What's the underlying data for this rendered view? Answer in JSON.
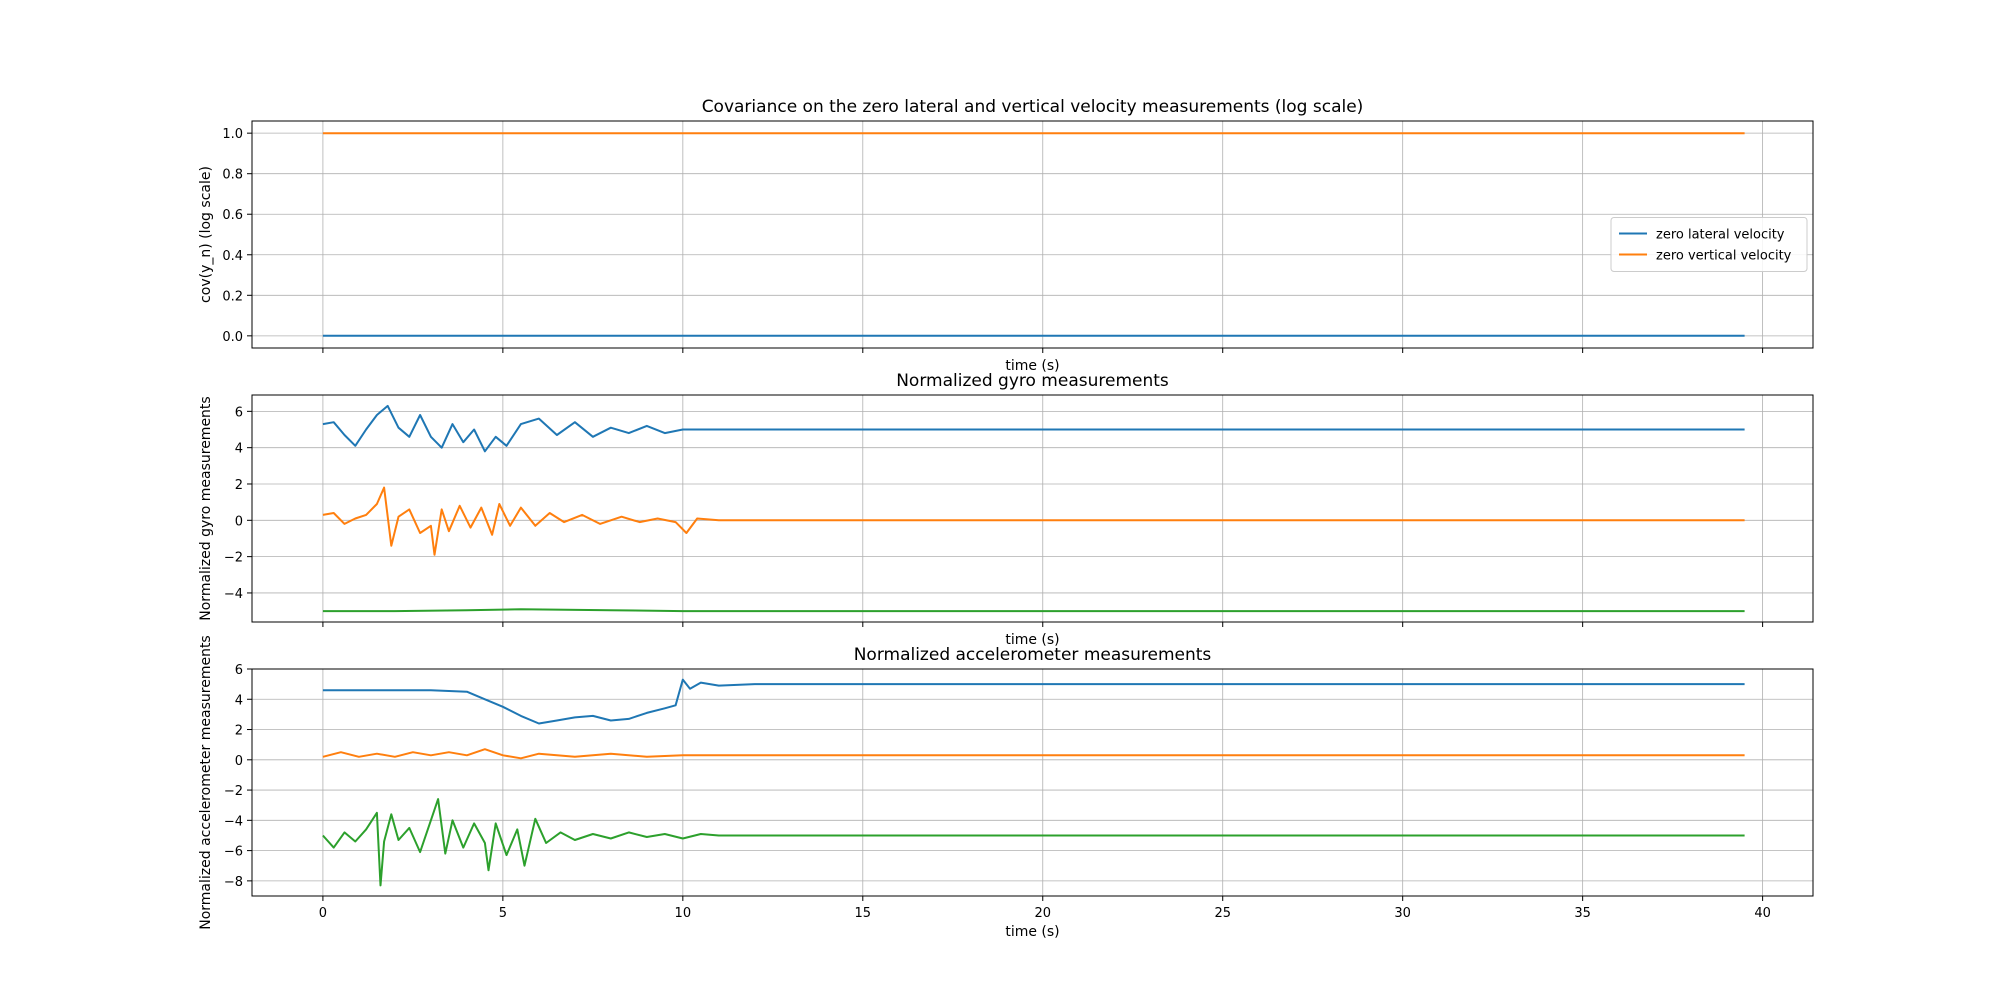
{
  "chart_data": [
    {
      "type": "line",
      "title": "Covariance on the zero lateral and vertical velocity measurements (log scale)",
      "xlabel": "time (s)",
      "ylabel": "cov(y_n) (log scale)",
      "xlim": [
        -1.97,
        41.4
      ],
      "ylim": [
        -0.06,
        1.06
      ],
      "xticks": [
        "0",
        "5",
        "10",
        "15",
        "20",
        "25",
        "30",
        "35",
        "40"
      ],
      "yticks": [
        "0.0",
        "0.2",
        "0.4",
        "0.6",
        "0.8",
        "1.0"
      ],
      "grid": true,
      "legend": "center-right",
      "series": [
        {
          "name": "zero lateral velocity",
          "color": "#1f77b4",
          "x": [
            0,
            5,
            10,
            39.5
          ],
          "y": [
            0.0,
            0.0,
            0.0,
            0.0
          ]
        },
        {
          "name": "zero vertical velocity",
          "color": "#ff7f0e",
          "x": [
            0,
            5,
            10,
            39.5
          ],
          "y": [
            1.0,
            1.0,
            1.0,
            1.0
          ]
        }
      ]
    },
    {
      "type": "line",
      "title": "Normalized gyro measurements",
      "xlabel": "time (s)",
      "ylabel": "Normalized gyro measurements",
      "xlim": [
        -1.97,
        41.4
      ],
      "ylim": [
        -5.6,
        6.9
      ],
      "xticks": [
        "0",
        "5",
        "10",
        "15",
        "20",
        "25",
        "30",
        "35",
        "40"
      ],
      "yticks": [
        "−4",
        "−2",
        "0",
        "2",
        "4",
        "6"
      ],
      "grid": true,
      "series": [
        {
          "color": "#1f77b4",
          "x": [
            0,
            0.3,
            0.6,
            0.9,
            1.2,
            1.5,
            1.8,
            2.1,
            2.4,
            2.7,
            3.0,
            3.3,
            3.6,
            3.9,
            4.2,
            4.5,
            4.8,
            5.1,
            5.5,
            6.0,
            6.5,
            7.0,
            7.5,
            8.0,
            8.5,
            9.0,
            9.5,
            10.0,
            11.0,
            12.0,
            39.5
          ],
          "y": [
            5.3,
            5.4,
            4.7,
            4.1,
            5.0,
            5.8,
            6.3,
            5.1,
            4.6,
            5.8,
            4.6,
            4.0,
            5.3,
            4.3,
            5.0,
            3.8,
            4.6,
            4.1,
            5.3,
            5.6,
            4.7,
            5.4,
            4.6,
            5.1,
            4.8,
            5.2,
            4.8,
            5.0,
            5.0,
            5.0,
            5.0
          ]
        },
        {
          "color": "#ff7f0e",
          "x": [
            0,
            0.3,
            0.6,
            0.9,
            1.2,
            1.5,
            1.7,
            1.9,
            2.1,
            2.4,
            2.7,
            3.0,
            3.1,
            3.3,
            3.5,
            3.8,
            4.1,
            4.4,
            4.7,
            4.9,
            5.2,
            5.5,
            5.9,
            6.3,
            6.7,
            7.2,
            7.7,
            8.3,
            8.8,
            9.3,
            9.8,
            10.1,
            10.4,
            11.0,
            39.5
          ],
          "y": [
            0.3,
            0.4,
            -0.2,
            0.1,
            0.3,
            0.9,
            1.8,
            -1.4,
            0.2,
            0.6,
            -0.7,
            -0.3,
            -1.9,
            0.6,
            -0.6,
            0.8,
            -0.4,
            0.7,
            -0.8,
            0.9,
            -0.3,
            0.7,
            -0.3,
            0.4,
            -0.1,
            0.3,
            -0.2,
            0.2,
            -0.1,
            0.1,
            -0.1,
            -0.7,
            0.1,
            0.0,
            0.0
          ]
        },
        {
          "color": "#2ca02c",
          "x": [
            0,
            2.0,
            4.0,
            5.5,
            8.0,
            10.0,
            39.5
          ],
          "y": [
            -5.0,
            -5.0,
            -4.95,
            -4.9,
            -4.95,
            -5.0,
            -5.0
          ]
        }
      ]
    },
    {
      "type": "line",
      "title": "Normalized accelerometer measurements",
      "xlabel": "time (s)",
      "ylabel": "Normalized accelerometer measurements",
      "xlim": [
        -1.97,
        41.4
      ],
      "ylim": [
        -9.0,
        6.0
      ],
      "xticks": [
        "0",
        "5",
        "10",
        "15",
        "20",
        "25",
        "30",
        "35",
        "40"
      ],
      "yticks": [
        "−8",
        "−6",
        "−4",
        "−2",
        "0",
        "2",
        "4",
        "6"
      ],
      "grid": true,
      "series": [
        {
          "color": "#1f77b4",
          "x": [
            0,
            1.0,
            2.0,
            3.0,
            4.0,
            4.5,
            5.0,
            5.5,
            6.0,
            6.5,
            7.0,
            7.5,
            8.0,
            8.5,
            9.0,
            9.5,
            9.8,
            10.0,
            10.2,
            10.5,
            11.0,
            12.0,
            39.5
          ],
          "y": [
            4.6,
            4.6,
            4.6,
            4.6,
            4.5,
            4.0,
            3.5,
            2.9,
            2.4,
            2.6,
            2.8,
            2.9,
            2.6,
            2.7,
            3.1,
            3.4,
            3.6,
            5.3,
            4.7,
            5.1,
            4.9,
            5.0,
            5.0
          ]
        },
        {
          "color": "#ff7f0e",
          "x": [
            0,
            0.5,
            1.0,
            1.5,
            2.0,
            2.5,
            3.0,
            3.5,
            4.0,
            4.5,
            5.0,
            5.5,
            6.0,
            7.0,
            8.0,
            9.0,
            10.0,
            11.0,
            39.5
          ],
          "y": [
            0.2,
            0.5,
            0.2,
            0.4,
            0.2,
            0.5,
            0.3,
            0.5,
            0.3,
            0.7,
            0.3,
            0.1,
            0.4,
            0.2,
            0.4,
            0.2,
            0.3,
            0.3,
            0.3
          ]
        },
        {
          "color": "#2ca02c",
          "x": [
            0,
            0.3,
            0.6,
            0.9,
            1.2,
            1.5,
            1.6,
            1.7,
            1.9,
            2.1,
            2.4,
            2.7,
            3.0,
            3.2,
            3.4,
            3.6,
            3.9,
            4.2,
            4.5,
            4.6,
            4.8,
            5.1,
            5.4,
            5.6,
            5.9,
            6.2,
            6.6,
            7.0,
            7.5,
            8.0,
            8.5,
            9.0,
            9.5,
            10.0,
            10.5,
            11.0,
            12.0,
            39.5
          ],
          "y": [
            -5.0,
            -5.8,
            -4.8,
            -5.4,
            -4.6,
            -3.5,
            -8.3,
            -5.4,
            -3.6,
            -5.3,
            -4.5,
            -6.1,
            -4.0,
            -2.6,
            -6.2,
            -4.0,
            -5.8,
            -4.2,
            -5.5,
            -7.3,
            -4.2,
            -6.3,
            -4.6,
            -7.0,
            -3.9,
            -5.5,
            -4.8,
            -5.3,
            -4.9,
            -5.2,
            -4.8,
            -5.1,
            -4.9,
            -5.2,
            -4.9,
            -5.0,
            -5.0,
            -5.0
          ]
        }
      ]
    }
  ]
}
